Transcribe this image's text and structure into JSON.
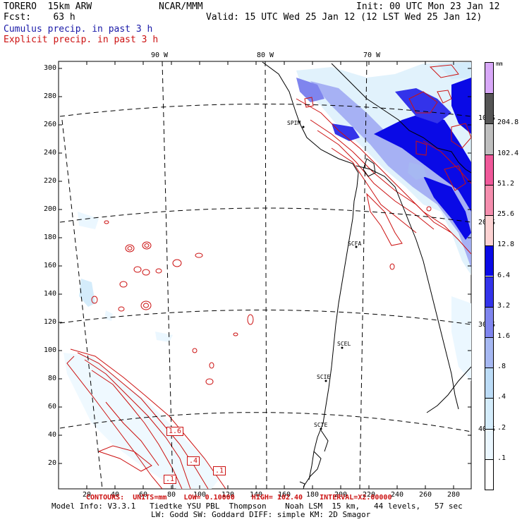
{
  "header": {
    "model": "TORERO  15km ARW",
    "forecast": "Fcst:    63 h",
    "center": "NCAR/MMM",
    "init": "Init: 00 UTC Mon 23 Jan 12",
    "valid": "Valid: 15 UTC Wed 25 Jan 12 (12 LST Wed 25 Jan 12)",
    "field_cumulus": "Cumulus precip. in past 3 h",
    "field_explicit": "Explicit precip. in past 3 h"
  },
  "longitude_labels": [
    "90 W",
    "80 W",
    "70 W"
  ],
  "latitude_labels": [
    "10 S",
    "20 S",
    "30 S",
    "40 S"
  ],
  "y_ticks": [
    "300",
    "280",
    "260",
    "240",
    "220",
    "200",
    "180",
    "160",
    "140",
    "120",
    "100",
    "80",
    "60",
    "40",
    "20"
  ],
  "x_ticks": [
    "20",
    "40",
    "60",
    "80",
    "100",
    "120",
    "140",
    "160",
    "180",
    "200",
    "220",
    "240",
    "260",
    "280"
  ],
  "stations": [
    "SPIM",
    "SCFA",
    "SCEL",
    "SCIE",
    "SCTE"
  ],
  "colorbar": {
    "unit": "mm",
    "levels": [
      ".1",
      ".2",
      ".4",
      ".8",
      "1.6",
      "3.2",
      "6.4",
      "12.8",
      "25.6",
      "51.2",
      "102.4",
      "204.8"
    ],
    "colors": [
      "#ffffff",
      "#ebf7ff",
      "#d4ecfb",
      "#bcdcf7",
      "#a6b8f2",
      "#7f85ee",
      "#3333ea",
      "#0a0ae6",
      "#fcd2d2",
      "#f58eae",
      "#f0599a",
      "#bfbfbf",
      "#555555",
      "#d8a8f8"
    ]
  },
  "contour_labels": [
    "1.6",
    ".4",
    ".1",
    ".1"
  ],
  "contour_info": {
    "text": "CONTOURS:  UNITS=mm    LOW= 0.10000    HIGH= 102.40    INTERVAL=X2.00000"
  },
  "footer": {
    "line1": "Model Info: V3.3.1   Tiedtke YSU PBL  Thompson    Noah LSM  15 km,   44 levels,   57 sec",
    "line2": "LW: Godd SW: Goddard DIFF: simple KM: 2D Smagor"
  }
}
